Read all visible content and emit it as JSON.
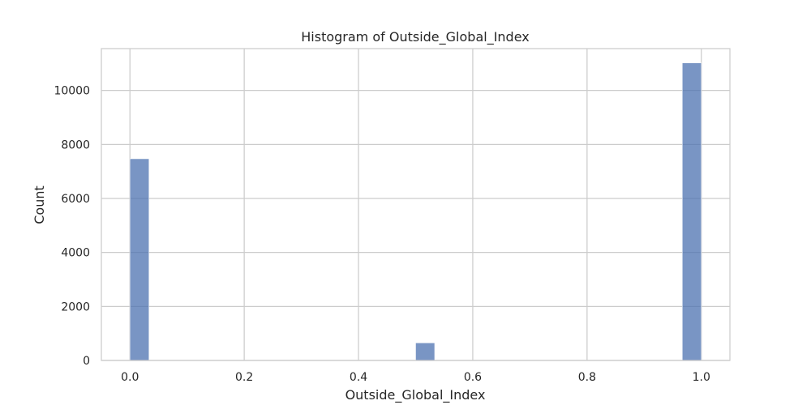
{
  "chart_data": {
    "type": "bar",
    "title": "Histogram of Outside_Global_Index",
    "xlabel": "Outside_Global_Index",
    "ylabel": "Count",
    "xlim": [
      -0.05,
      1.05
    ],
    "ylim": [
      0,
      11550
    ],
    "xticks": [
      0.0,
      0.2,
      0.4,
      0.6,
      0.8,
      1.0
    ],
    "xtick_labels": [
      "0.0",
      "0.2",
      "0.4",
      "0.6",
      "0.8",
      "1.0"
    ],
    "yticks": [
      0,
      2000,
      4000,
      6000,
      8000,
      10000
    ],
    "ytick_labels": [
      "0",
      "2000",
      "4000",
      "6000",
      "8000",
      "10000"
    ],
    "bins": [
      {
        "x0": 0.0,
        "x1": 0.0333,
        "count": 7470
      },
      {
        "x0": 0.5,
        "x1": 0.5333,
        "count": 650
      },
      {
        "x0": 0.9667,
        "x1": 1.0,
        "count": 11020
      }
    ],
    "grid": true,
    "bar_color": "#4c72b0"
  }
}
